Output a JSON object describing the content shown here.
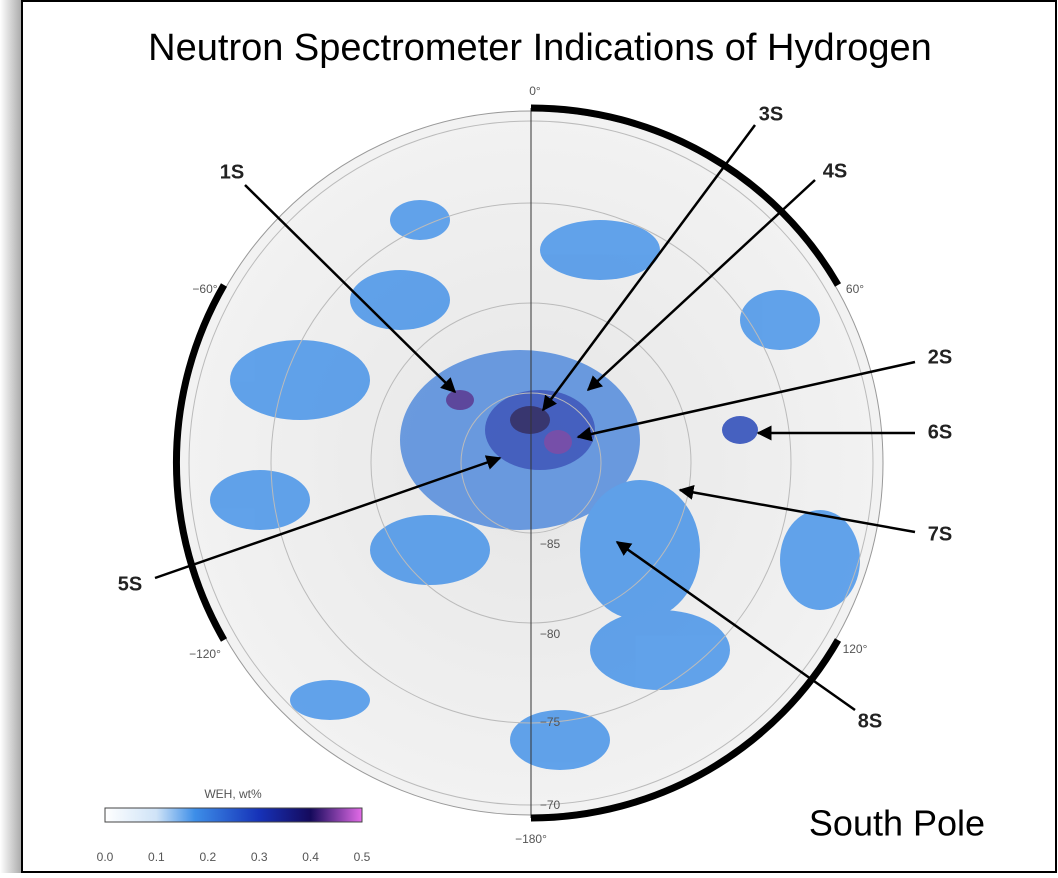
{
  "header": {
    "title": "Neutron Spectrometer Indications of Hydrogen"
  },
  "map": {
    "longitude_labels": [
      "0°",
      "60°",
      "120°",
      "−180°",
      "−120°",
      "−60°"
    ],
    "latitude_labels": [
      "−85",
      "−80",
      "−75",
      "−70"
    ],
    "sites": [
      "1S",
      "2S",
      "3S",
      "4S",
      "5S",
      "6S",
      "7S",
      "8S"
    ],
    "region": "South Pole"
  },
  "colorbar": {
    "title": "WEH, wt%",
    "ticks": [
      "0.0",
      "0.1",
      "0.2",
      "0.3",
      "0.4",
      "0.5"
    ]
  }
}
